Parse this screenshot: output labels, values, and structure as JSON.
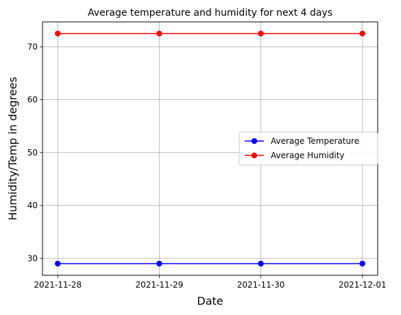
{
  "chart_data": {
    "type": "line",
    "title": "Average temperature and humidity for next 4 days",
    "xlabel": "Date",
    "ylabel": "Humidity/Temp in degrees",
    "categories": [
      "2021-11-28",
      "2021-11-29",
      "2021-11-30",
      "2021-12-01"
    ],
    "series": [
      {
        "name": "Average Temperature",
        "color": "#0000ff",
        "marker": "circle",
        "values": [
          29,
          29,
          29,
          29
        ]
      },
      {
        "name": "Average Humidity",
        "color": "#ff0000",
        "marker": "circle",
        "values": [
          72.5,
          72.5,
          72.5,
          72.5
        ]
      }
    ],
    "ylim": [
      26.8,
      74.7
    ],
    "yticks": [
      30,
      40,
      50,
      60,
      70
    ],
    "ytick_labels": [
      "30",
      "40",
      "50",
      "60",
      "70"
    ],
    "grid": true,
    "legend_position": "center-right"
  }
}
